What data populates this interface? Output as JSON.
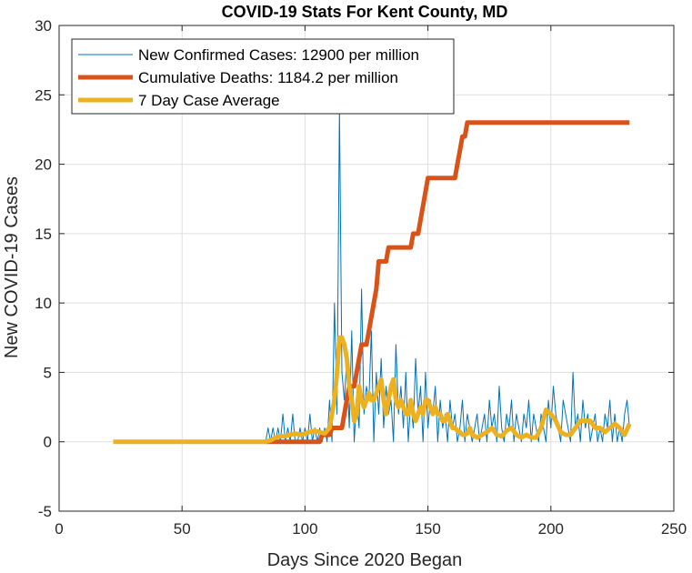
{
  "chart_data": {
    "type": "line",
    "title": "COVID-19 Stats For Kent County, MD",
    "xlabel": "Days Since 2020 Began",
    "ylabel": "New COVID-19 Cases",
    "xlim": [
      0,
      250
    ],
    "ylim": [
      -5,
      30
    ],
    "xticks": [
      0,
      50,
      100,
      150,
      200,
      250
    ],
    "yticks": [
      -5,
      0,
      5,
      10,
      15,
      20,
      25,
      30
    ],
    "grid": true,
    "legend_position": "top-left",
    "series": [
      {
        "name": "New Confirmed Cases: 12900 per million",
        "color": "#0072BD",
        "line_width": 1,
        "x": [
          22,
          84,
          85,
          86,
          87,
          88,
          89,
          90,
          91,
          92,
          93,
          94,
          95,
          96,
          97,
          98,
          99,
          100,
          101,
          102,
          103,
          104,
          105,
          106,
          107,
          108,
          109,
          110,
          111,
          112,
          113,
          114,
          115,
          116,
          117,
          118,
          119,
          120,
          121,
          122,
          123,
          124,
          125,
          126,
          127,
          128,
          129,
          130,
          131,
          132,
          133,
          134,
          135,
          136,
          137,
          138,
          139,
          140,
          141,
          142,
          143,
          144,
          145,
          146,
          147,
          148,
          149,
          150,
          151,
          152,
          153,
          154,
          155,
          156,
          157,
          158,
          159,
          160,
          161,
          162,
          163,
          164,
          165,
          166,
          167,
          168,
          169,
          170,
          171,
          172,
          173,
          174,
          175,
          176,
          177,
          178,
          179,
          180,
          181,
          182,
          183,
          184,
          185,
          186,
          187,
          188,
          189,
          190,
          191,
          192,
          193,
          194,
          195,
          196,
          197,
          198,
          199,
          200,
          201,
          202,
          203,
          204,
          205,
          206,
          207,
          208,
          209,
          210,
          211,
          212,
          213,
          214,
          215,
          216,
          217,
          218,
          219,
          220,
          221,
          222,
          223,
          224,
          225,
          226,
          227,
          228,
          229,
          230,
          231,
          232
        ],
        "y": [
          0,
          0,
          1,
          0,
          1,
          0,
          1,
          0,
          2,
          0,
          1,
          0,
          2,
          0,
          0,
          1,
          0,
          1,
          0,
          2,
          0,
          1,
          0,
          1,
          0,
          1,
          0,
          3,
          0,
          10,
          2,
          24,
          5,
          3,
          6,
          1,
          8,
          0,
          3,
          1,
          11,
          2,
          4,
          3,
          8,
          0,
          5,
          2,
          6,
          1,
          4,
          2,
          3,
          0,
          7,
          2,
          4,
          1,
          5,
          0,
          3,
          1,
          6,
          2,
          4,
          0,
          5,
          1,
          3,
          2,
          4,
          0,
          3,
          1,
          2,
          0,
          3,
          1,
          2,
          0,
          1,
          3,
          0,
          2,
          1,
          0,
          1,
          2,
          0,
          1,
          2,
          0,
          3,
          1,
          2,
          0,
          4,
          1,
          0,
          2,
          1,
          3,
          0,
          2,
          1,
          0,
          2,
          1,
          3,
          0,
          2,
          1,
          0,
          2,
          1,
          0,
          3,
          1,
          4,
          2,
          1,
          0,
          3,
          2,
          1,
          0,
          5,
          1,
          2,
          0,
          3,
          1,
          2,
          0,
          1,
          2,
          0,
          1,
          0,
          2,
          1,
          3,
          0,
          2,
          0,
          1,
          0,
          2,
          3,
          1
        ]
      },
      {
        "name": "Cumulative Deaths: 1184.2 per million",
        "color": "#D95319",
        "line_width": 5,
        "x": [
          84,
          106,
          107,
          108,
          109,
          110,
          111,
          112,
          113,
          114,
          115,
          116,
          117,
          118,
          119,
          120,
          121,
          122,
          123,
          124,
          125,
          126,
          127,
          128,
          129,
          130,
          131,
          132,
          133,
          134,
          135,
          136,
          137,
          138,
          139,
          140,
          141,
          142,
          143,
          144,
          145,
          146,
          147,
          148,
          149,
          150,
          151,
          152,
          153,
          154,
          155,
          156,
          157,
          158,
          159,
          160,
          161,
          162,
          163,
          164,
          165,
          166,
          232
        ],
        "y": [
          0,
          0,
          0.5,
          0.5,
          0.5,
          0.5,
          1,
          1,
          1,
          1,
          1,
          2,
          3,
          4,
          4,
          4,
          5,
          6,
          7,
          7,
          7,
          8,
          9,
          10,
          11,
          13,
          13,
          13,
          13,
          14,
          14,
          14,
          14,
          14,
          14,
          14,
          14,
          14,
          14,
          15,
          15,
          15,
          16,
          17,
          18,
          19,
          19,
          19,
          19,
          19,
          19,
          19,
          19,
          19,
          19,
          19,
          19,
          20,
          21,
          22,
          22,
          23,
          23
        ]
      },
      {
        "name": "7 Day Case Average",
        "color": "#EDB120",
        "line_width": 5,
        "x": [
          22,
          84,
          86,
          88,
          90,
          92,
          94,
          96,
          98,
          100,
          102,
          104,
          106,
          108,
          110,
          111,
          112,
          113,
          114,
          115,
          116,
          117,
          118,
          119,
          120,
          121,
          122,
          123,
          124,
          125,
          126,
          127,
          128,
          129,
          130,
          131,
          132,
          133,
          134,
          135,
          136,
          137,
          138,
          139,
          140,
          141,
          142,
          143,
          144,
          145,
          146,
          147,
          148,
          149,
          150,
          151,
          152,
          153,
          154,
          155,
          156,
          157,
          158,
          159,
          160,
          161,
          162,
          163,
          164,
          165,
          166,
          167,
          168,
          170,
          172,
          174,
          176,
          178,
          180,
          182,
          184,
          186,
          188,
          190,
          192,
          194,
          196,
          198,
          200,
          202,
          204,
          206,
          208,
          210,
          212,
          214,
          216,
          218,
          220,
          222,
          224,
          226,
          228,
          230,
          232
        ],
        "y": [
          0,
          0,
          0.1,
          0.3,
          0.4,
          0.4,
          0.5,
          0.6,
          0.5,
          0.6,
          0.7,
          0.8,
          0.7,
          0.6,
          1,
          2,
          3,
          5,
          7.5,
          7.5,
          7,
          6,
          4,
          3,
          1.5,
          2,
          4,
          3,
          2.5,
          3,
          3.5,
          3,
          3,
          3.5,
          4,
          4.5,
          3,
          2,
          3,
          4,
          4.5,
          3,
          2.5,
          3,
          2.5,
          2,
          2,
          3,
          2,
          1.5,
          2,
          2.5,
          2,
          3,
          3,
          2.5,
          2,
          2.5,
          2,
          2,
          1.5,
          1.5,
          2,
          1.5,
          1,
          1,
          0.8,
          0.7,
          0.5,
          0.5,
          0.6,
          1,
          0.5,
          0.3,
          0.5,
          0.7,
          1,
          0.5,
          0.4,
          0.8,
          1,
          0.5,
          0.3,
          0.5,
          0.3,
          0.3,
          1,
          2.3,
          2,
          1.5,
          0.7,
          0.5,
          0.5,
          1,
          1.5,
          1.5,
          1.5,
          1,
          1,
          0.7,
          1,
          1.3,
          1,
          0.5,
          1.3
        ]
      }
    ]
  }
}
